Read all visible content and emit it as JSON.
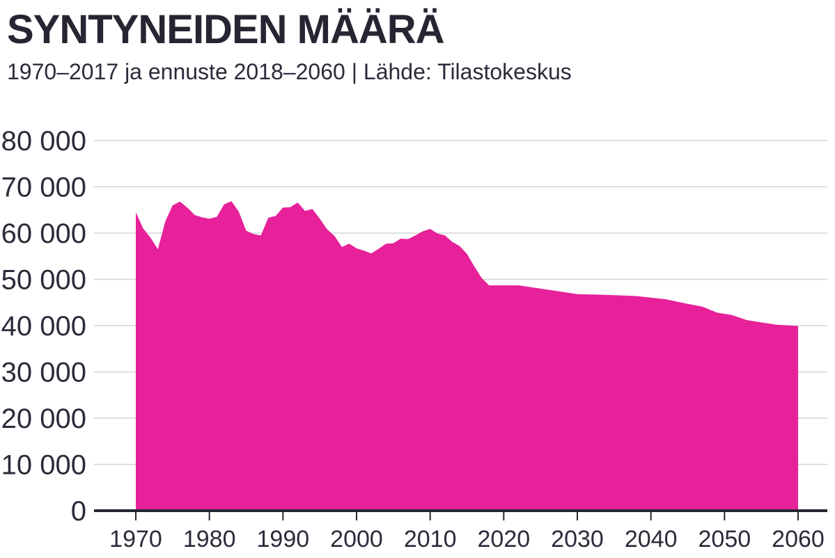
{
  "header": {
    "title": "SYNTYNEIDEN MÄÄRÄ",
    "subtitle": "1970–2017 ja ennuste 2018–2060 | Lähde: Tilastokeskus"
  },
  "colors": {
    "area": "#e6219a",
    "grid": "#d4d4d8",
    "axis": "#262633",
    "text": "#2b2b3a"
  },
  "chart_data": {
    "type": "area",
    "title": "SYNTYNEIDEN MÄÄRÄ",
    "subtitle": "1970–2017 ja ennuste 2018–2060 | Lähde: Tilastokeskus",
    "xlabel": "",
    "ylabel": "",
    "xlim": [
      1970,
      2060
    ],
    "ylim": [
      0,
      80000
    ],
    "grid": true,
    "legend": "none",
    "x_ticks": [
      1970,
      1980,
      1990,
      2000,
      2010,
      2020,
      2030,
      2040,
      2050,
      2060
    ],
    "x_tick_labels": [
      "1970",
      "1980",
      "1990",
      "2000",
      "2010",
      "2020",
      "2030",
      "2040",
      "2050",
      "2060"
    ],
    "y_ticks": [
      0,
      10000,
      20000,
      30000,
      40000,
      50000,
      60000,
      70000,
      80000
    ],
    "y_tick_labels": [
      "0",
      "10 000",
      "20 000",
      "30 000",
      "40 000",
      "50 000",
      "60 000",
      "70 000",
      "80 000"
    ],
    "series": [
      {
        "x": [
          1970,
          1971,
          1972,
          1973,
          1974,
          1975,
          1976,
          1977,
          1978,
          1979,
          1980,
          1981,
          1982,
          1983,
          1984,
          1985,
          1986,
          1987,
          1988,
          1989,
          1990,
          1991,
          1992,
          1993,
          1994,
          1995,
          1996,
          1997,
          1998,
          1999,
          2000,
          2001,
          2002,
          2003,
          2004,
          2005,
          2006,
          2007,
          2008,
          2009,
          2010,
          2011,
          2012,
          2013,
          2014,
          2015,
          2016,
          2017,
          2018,
          2020,
          2022,
          2025,
          2030,
          2033,
          2038,
          2042,
          2045,
          2047,
          2049,
          2051,
          2053,
          2055,
          2057,
          2060
        ],
        "values": [
          64500,
          61000,
          59000,
          56500,
          62500,
          66000,
          66800,
          65500,
          63900,
          63400,
          63100,
          63500,
          66200,
          66900,
          64600,
          60500,
          59800,
          59500,
          63300,
          63700,
          65500,
          65600,
          66600,
          64800,
          65200,
          63100,
          60800,
          59400,
          57000,
          57700,
          56700,
          56200,
          55600,
          56600,
          57700,
          57800,
          58800,
          58700,
          59500,
          60400,
          60900,
          59900,
          59500,
          58100,
          57200,
          55500,
          52800,
          50300,
          48700,
          48700,
          48700,
          48000,
          46800,
          46700,
          46400,
          45700,
          44700,
          44100,
          42800,
          42300,
          41200,
          40700,
          40200,
          39900
        ]
      }
    ]
  }
}
